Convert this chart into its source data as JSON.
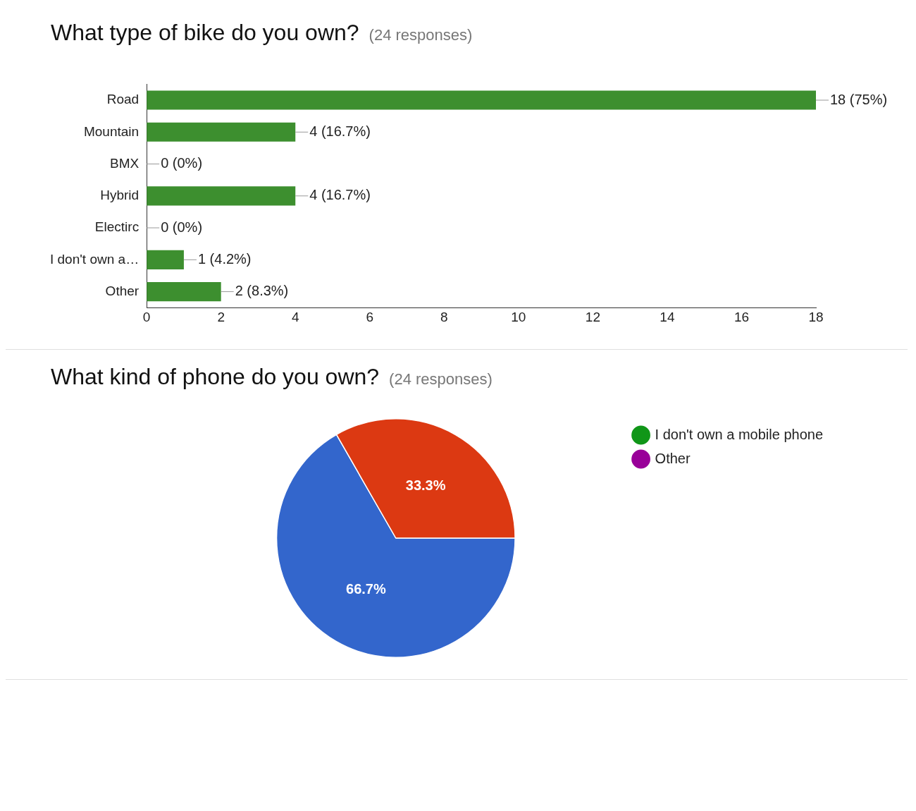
{
  "chart_data": [
    {
      "type": "bar",
      "orientation": "horizontal",
      "title": "What type of bike do you own?",
      "subtitle": "(24 responses)",
      "categories": [
        "Road",
        "Mountain",
        "BMX",
        "Hybrid",
        "Electirc",
        "I don't own a…",
        "Other"
      ],
      "values": [
        18,
        4,
        0,
        4,
        0,
        1,
        2
      ],
      "value_labels": [
        "18 (75%)",
        "4 (16.7%)",
        "0 (0%)",
        "4 (16.7%)",
        "0 (0%)",
        "1 (4.2%)",
        "2 (8.3%)"
      ],
      "color": "#3d8f2f",
      "xlim": [
        0,
        18
      ],
      "xticks": [
        0,
        2,
        4,
        6,
        8,
        10,
        12,
        14,
        16,
        18
      ],
      "grid": false,
      "legend": false
    },
    {
      "type": "pie",
      "title": "What kind of phone do you own?",
      "subtitle": "(24 responses)",
      "categories": [
        null,
        null,
        null,
        "I don't own a mobile phone",
        "Other"
      ],
      "values": [
        66.7,
        33.3,
        0,
        0,
        0
      ],
      "value_labels": [
        "66.7%",
        "33.3%",
        null,
        null,
        null
      ],
      "colors": [
        "#3366cc",
        "#dc3912",
        "#ff9900",
        "#109618",
        "#990099"
      ],
      "legend": "right"
    }
  ]
}
